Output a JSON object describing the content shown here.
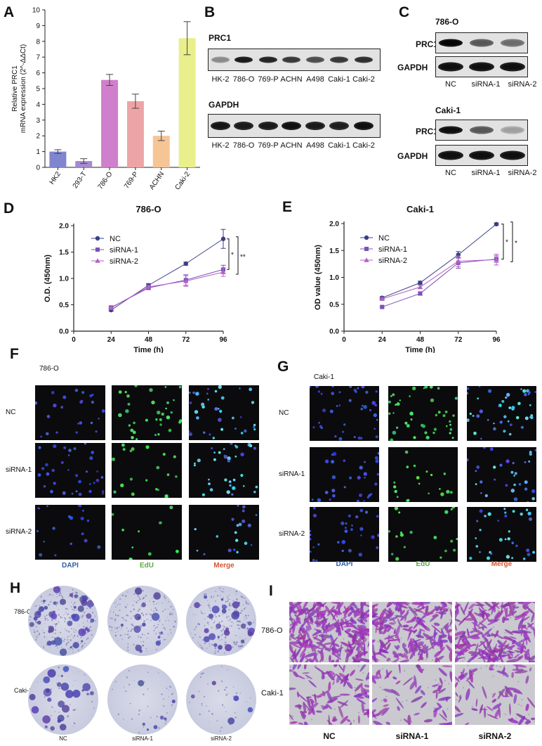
{
  "panels": {
    "A": "A",
    "B": "B",
    "C": "C",
    "D": "D",
    "E": "E",
    "F": "F",
    "G": "G",
    "H": "H",
    "I": "I"
  },
  "chart_data": [
    {
      "id": "A",
      "type": "bar",
      "categories": [
        "HK2",
        "293-T",
        "786-O",
        "769-P",
        "ACHN",
        "Caki-2"
      ],
      "values": [
        1.0,
        0.4,
        5.55,
        4.2,
        2.0,
        8.2
      ],
      "errors": [
        0.12,
        0.15,
        0.35,
        0.45,
        0.3,
        1.05
      ],
      "colors": [
        "#7f86cf",
        "#a58ad0",
        "#cf7fcb",
        "#eda4a6",
        "#f6c596",
        "#e8ef8b"
      ],
      "ylabel_line1": "Relative PRC1",
      "ylabel_line2": "mRNA expression (2^-ΔΔCt)",
      "ylim": [
        0,
        10
      ],
      "yticks": [
        0,
        1,
        2,
        3,
        4,
        5,
        6,
        7,
        8,
        9,
        10
      ]
    },
    {
      "id": "D",
      "type": "line",
      "title": "786-O",
      "xlabel": "Time (h)",
      "ylabel": "O.D. (450nm)",
      "x": [
        24,
        48,
        72,
        96
      ],
      "xlim": [
        0,
        96
      ],
      "xticks": [
        0,
        24,
        48,
        72,
        96
      ],
      "ylim": [
        0,
        2.0
      ],
      "yticks": [
        "0.0",
        "0.5",
        "1.0",
        "1.5",
        "2.0"
      ],
      "series": [
        {
          "name": "NC",
          "values": [
            0.4,
            0.87,
            1.28,
            1.75
          ],
          "errors": [
            0.02,
            0.03,
            0.03,
            0.18
          ],
          "marker": "circle",
          "color": "#3b3f86"
        },
        {
          "name": "siRNA-1",
          "values": [
            0.45,
            0.82,
            0.97,
            1.17
          ],
          "errors": [
            0.02,
            0.03,
            0.1,
            0.08
          ],
          "marker": "square",
          "color": "#7a52b5"
        },
        {
          "name": "siRNA-2",
          "values": [
            0.44,
            0.84,
            0.95,
            1.12
          ],
          "errors": [
            0.02,
            0.03,
            0.1,
            0.08
          ],
          "marker": "triangle",
          "color": "#b35fc7"
        }
      ],
      "sig": [
        "*",
        "**"
      ]
    },
    {
      "id": "E",
      "type": "line",
      "title": "Caki-1",
      "xlabel": "Time (h)",
      "ylabel": "OD value (450nm)",
      "x": [
        24,
        48,
        72,
        96
      ],
      "xlim": [
        0,
        96
      ],
      "xticks": [
        0,
        24,
        48,
        72,
        96
      ],
      "ylim": [
        0,
        2.0
      ],
      "yticks": [
        "0.0",
        "0.5",
        "1.0",
        "1.5",
        "2.0"
      ],
      "series": [
        {
          "name": "NC",
          "values": [
            0.62,
            0.9,
            1.42,
            1.99
          ],
          "errors": [
            0.02,
            0.03,
            0.06,
            0.02
          ],
          "marker": "circle",
          "color": "#3b3f86"
        },
        {
          "name": "siRNA-1",
          "values": [
            0.45,
            0.7,
            1.27,
            1.34
          ],
          "errors": [
            0.02,
            0.03,
            0.1,
            0.06
          ],
          "marker": "square",
          "color": "#7a52b5"
        },
        {
          "name": "siRNA-2",
          "values": [
            0.6,
            0.82,
            1.3,
            1.33
          ],
          "errors": [
            0.02,
            0.03,
            0.1,
            0.1
          ],
          "marker": "triangle",
          "color": "#b35fc7"
        }
      ],
      "sig": [
        "*",
        "*"
      ]
    }
  ],
  "B": {
    "blot1_title": "PRC1",
    "blot2_title": "GAPDH",
    "lanes": [
      "HK-2",
      "786-O",
      "769-P",
      "ACHN",
      "A498",
      "Caki-1",
      "Caki-2"
    ],
    "prc1_intensity": [
      0.35,
      0.9,
      0.85,
      0.75,
      0.65,
      0.75,
      0.8
    ]
  },
  "C": {
    "cell1": "786-O",
    "cell2": "Caki-1",
    "row1": "PRC1",
    "row2": "GAPDH",
    "lanes": [
      "NC",
      "siRNA-1",
      "siRNA-2"
    ],
    "prc1_786": [
      1.0,
      0.6,
      0.5
    ],
    "prc1_caki": [
      0.95,
      0.6,
      0.25
    ]
  },
  "F": {
    "cell": "786-O",
    "rows": [
      "NC",
      "siRNA-1",
      "siRNA-2"
    ],
    "cols": [
      "DAPI",
      "EdU",
      "Merge"
    ],
    "col_colors": [
      "#2e5ea8",
      "#5aa944",
      "#d6552f"
    ]
  },
  "G": {
    "cell": "Caki-1",
    "rows": [
      "NC",
      "siRNA-1",
      "siRNA-2"
    ],
    "cols": [
      "DAPI",
      "EdU",
      "Merge"
    ],
    "col_colors": [
      "#2e5ea8",
      "#5aa944",
      "#d6552f"
    ]
  },
  "H": {
    "rows": [
      "786-O",
      "Caki-1"
    ],
    "cols": [
      "NC",
      "siRNA-1",
      "siRNA-2"
    ]
  },
  "I": {
    "rows": [
      "786-O",
      "Caki-1"
    ],
    "cols": [
      "NC",
      "siRNA-1",
      "siRNA-2"
    ]
  }
}
